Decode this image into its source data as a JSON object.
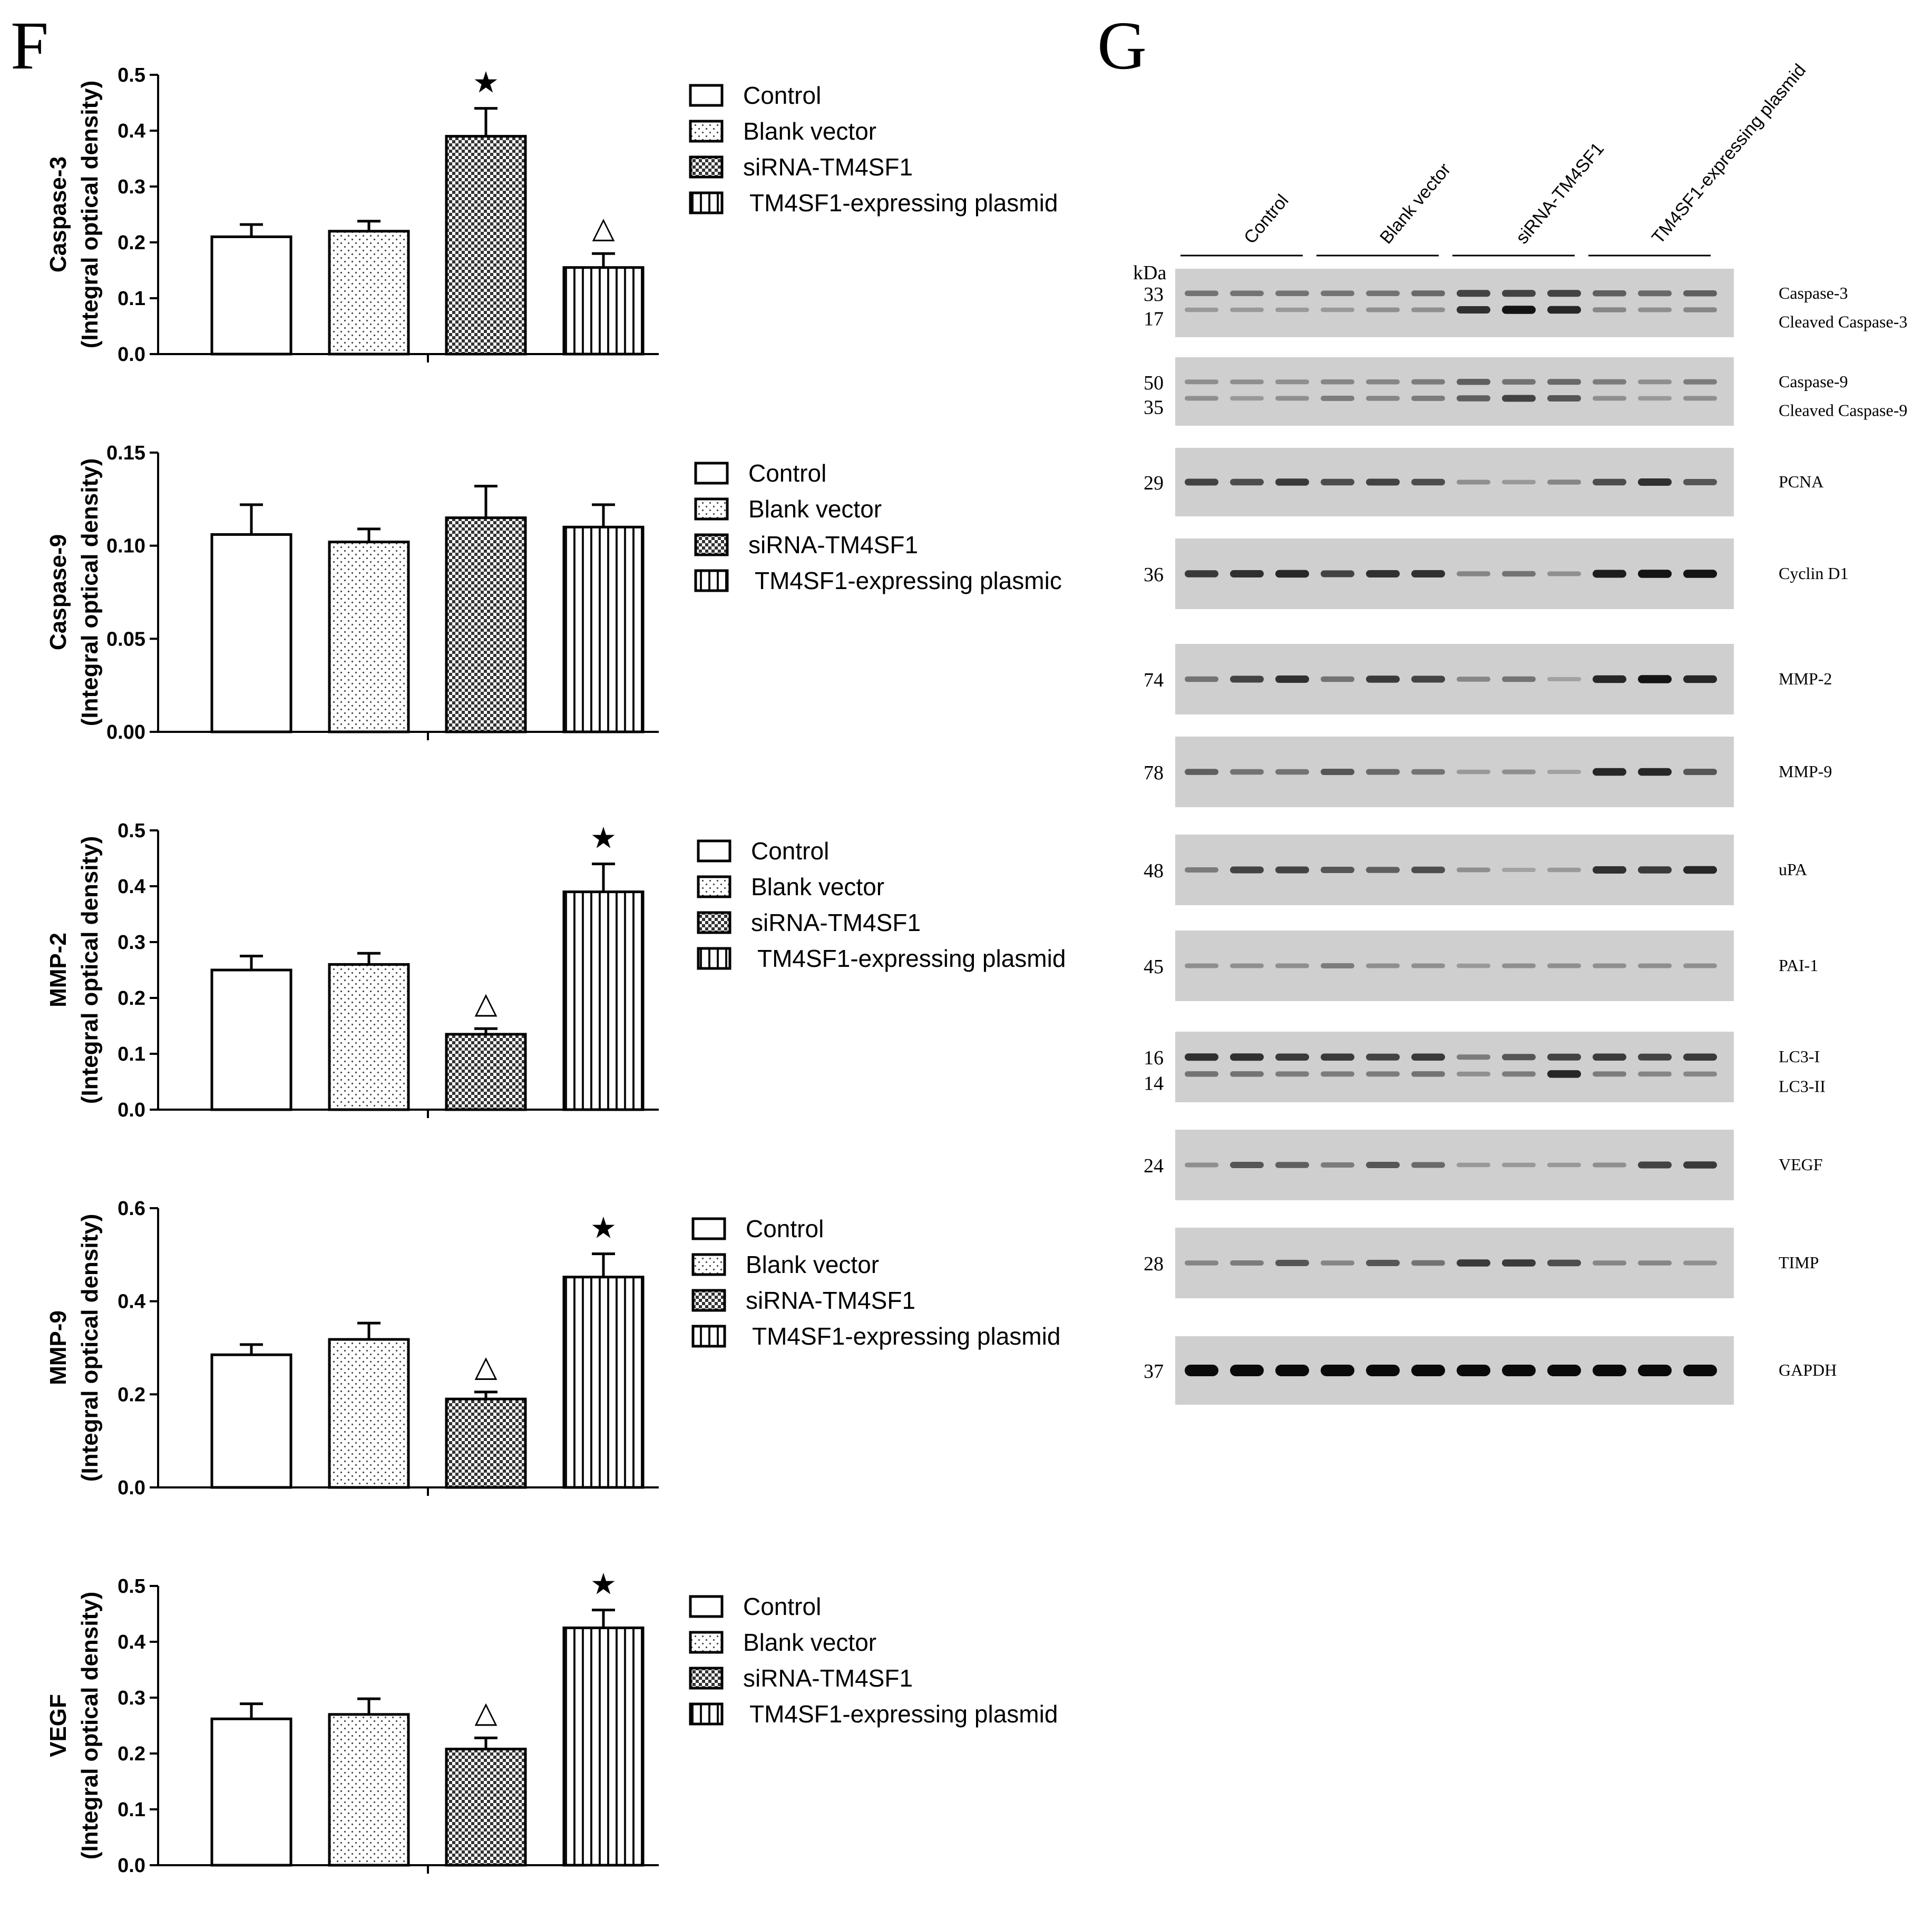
{
  "panels": {
    "F": "F",
    "G": "G"
  },
  "legend": [
    "Control",
    "Blank vector",
    "siRNA-TM4SF1",
    "TM4SF1-expressing plasmid"
  ],
  "legend_variant": "TM4SF1-expressing plasmic",
  "chart_data": [
    {
      "type": "bar",
      "title": "",
      "ylabel": [
        "Caspase-3",
        "(Integral optical density)"
      ],
      "categories": [
        "Control",
        "Blank vector",
        "siRNA-TM4SF1",
        "TM4SF1-expressing plasmid"
      ],
      "values": [
        0.21,
        0.22,
        0.39,
        0.155
      ],
      "errors": [
        0.022,
        0.018,
        0.05,
        0.025
      ],
      "ylim": [
        0,
        0.5
      ],
      "yticks": [
        "0.0",
        "0.1",
        "0.2",
        "0.3",
        "0.4",
        "0.5"
      ],
      "markers": [
        null,
        null,
        "★",
        "△"
      ]
    },
    {
      "type": "bar",
      "title": "",
      "ylabel": [
        "Caspase-9",
        "(Integral optical density)"
      ],
      "categories": [
        "Control",
        "Blank vector",
        "siRNA-TM4SF1",
        "TM4SF1-expressing plasmid"
      ],
      "values": [
        0.106,
        0.102,
        0.115,
        0.11
      ],
      "errors": [
        0.016,
        0.007,
        0.017,
        0.012
      ],
      "ylim": [
        0,
        0.15
      ],
      "yticks": [
        "0.00",
        "0.05",
        "0.10",
        "0.15"
      ],
      "markers": [
        null,
        null,
        null,
        null
      ]
    },
    {
      "type": "bar",
      "title": "",
      "ylabel": [
        "MMP-2",
        "(Integral optical density)"
      ],
      "categories": [
        "Control",
        "Blank vector",
        "siRNA-TM4SF1",
        "TM4SF1-expressing plasmid"
      ],
      "values": [
        0.25,
        0.26,
        0.135,
        0.39
      ],
      "errors": [
        0.025,
        0.02,
        0.01,
        0.05
      ],
      "ylim": [
        0,
        0.5
      ],
      "yticks": [
        "0.0",
        "0.1",
        "0.2",
        "0.3",
        "0.4",
        "0.5"
      ],
      "markers": [
        null,
        null,
        "△",
        "★"
      ]
    },
    {
      "type": "bar",
      "title": "",
      "ylabel": [
        "MMP-9",
        "(Integral optical density)"
      ],
      "categories": [
        "Control",
        "Blank vector",
        "siRNA-TM4SF1",
        "TM4SF1-expressing plasmid"
      ],
      "values": [
        0.285,
        0.318,
        0.19,
        0.452
      ],
      "errors": [
        0.022,
        0.035,
        0.015,
        0.05
      ],
      "ylim": [
        0,
        0.6
      ],
      "yticks": [
        "0.0",
        "0.2",
        "0.4",
        "0.6"
      ],
      "markers": [
        null,
        null,
        "△",
        "★"
      ]
    },
    {
      "type": "bar",
      "title": "",
      "ylabel": [
        "VEGF",
        "(Integral optical density)"
      ],
      "categories": [
        "Control",
        "Blank vector",
        "siRNA-TM4SF1",
        "TM4SF1-expressing plasmid"
      ],
      "values": [
        0.262,
        0.27,
        0.208,
        0.425
      ],
      "errors": [
        0.027,
        0.028,
        0.02,
        0.032
      ],
      "ylim": [
        0,
        0.5
      ],
      "yticks": [
        "0.0",
        "0.1",
        "0.2",
        "0.3",
        "0.4",
        "0.5"
      ],
      "markers": [
        null,
        null,
        "△",
        "★"
      ]
    }
  ],
  "blot": {
    "kda_label": "kDa",
    "groups": [
      "Control",
      "Blank vector",
      "siRNA-TM4SF1",
      "TM4SF1-expressing plasmid"
    ],
    "rows": [
      {
        "kda": [
          "33",
          "17"
        ],
        "proteins": [
          "Caspase-3",
          "Cleaved Caspase-3"
        ],
        "bands": 2,
        "intensity": [
          0.45,
          0.45,
          0.45,
          0.45,
          0.45,
          0.5,
          0.7,
          0.7,
          0.7,
          0.55,
          0.5,
          0.55
        ],
        "intensity2": [
          0.25,
          0.25,
          0.25,
          0.25,
          0.3,
          0.3,
          0.8,
          0.95,
          0.85,
          0.35,
          0.3,
          0.35
        ]
      },
      {
        "kda": [
          "50",
          "35"
        ],
        "proteins": [
          "Caspase-9",
          "Cleaved Caspase-9"
        ],
        "bands": 2,
        "intensity": [
          0.3,
          0.3,
          0.3,
          0.35,
          0.35,
          0.4,
          0.55,
          0.45,
          0.5,
          0.4,
          0.3,
          0.4
        ],
        "intensity2": [
          0.3,
          0.25,
          0.3,
          0.4,
          0.35,
          0.4,
          0.55,
          0.7,
          0.6,
          0.3,
          0.25,
          0.3
        ]
      },
      {
        "kda": [
          "29"
        ],
        "proteins": [
          "PCNA"
        ],
        "bands": 1,
        "intensity": [
          0.7,
          0.65,
          0.75,
          0.65,
          0.7,
          0.65,
          0.3,
          0.25,
          0.35,
          0.65,
          0.8,
          0.6
        ]
      },
      {
        "kda": [
          "36"
        ],
        "proteins": [
          "Cyclin D1"
        ],
        "bands": 1,
        "intensity": [
          0.75,
          0.8,
          0.85,
          0.7,
          0.8,
          0.8,
          0.35,
          0.45,
          0.3,
          0.9,
          0.95,
          0.95
        ]
      },
      {
        "kda": [
          "74"
        ],
        "proteins": [
          "MMP-2"
        ],
        "bands": 1,
        "intensity": [
          0.45,
          0.7,
          0.8,
          0.45,
          0.75,
          0.7,
          0.35,
          0.45,
          0.2,
          0.85,
          0.95,
          0.85
        ]
      },
      {
        "kda": [
          "78"
        ],
        "proteins": [
          "MMP-9"
        ],
        "bands": 1,
        "intensity": [
          0.55,
          0.45,
          0.45,
          0.6,
          0.5,
          0.45,
          0.25,
          0.3,
          0.2,
          0.85,
          0.85,
          0.6
        ]
      },
      {
        "kda": [
          "48"
        ],
        "proteins": [
          "uPA"
        ],
        "bands": 1,
        "intensity": [
          0.4,
          0.7,
          0.7,
          0.6,
          0.55,
          0.65,
          0.3,
          0.2,
          0.25,
          0.8,
          0.75,
          0.85
        ]
      },
      {
        "kda": [
          "45"
        ],
        "proteins": [
          "PAI-1"
        ],
        "bands": 1,
        "intensity": [
          0.3,
          0.3,
          0.3,
          0.4,
          0.3,
          0.3,
          0.25,
          0.3,
          0.3,
          0.3,
          0.3,
          0.3
        ]
      },
      {
        "kda": [
          "16",
          "14"
        ],
        "proteins": [
          "LC3-I",
          "LC3-II"
        ],
        "bands": 2,
        "intensity": [
          0.8,
          0.8,
          0.75,
          0.75,
          0.7,
          0.75,
          0.4,
          0.6,
          0.7,
          0.75,
          0.7,
          0.75
        ],
        "intensity2": [
          0.45,
          0.45,
          0.4,
          0.4,
          0.4,
          0.45,
          0.3,
          0.4,
          0.85,
          0.4,
          0.35,
          0.35
        ]
      },
      {
        "kda": [
          "24"
        ],
        "proteins": [
          "VEGF"
        ],
        "bands": 1,
        "intensity": [
          0.3,
          0.6,
          0.55,
          0.4,
          0.6,
          0.5,
          0.25,
          0.25,
          0.25,
          0.3,
          0.7,
          0.75
        ]
      },
      {
        "kda": [
          "28"
        ],
        "proteins": [
          "TIMP"
        ],
        "bands": 1,
        "intensity": [
          0.35,
          0.4,
          0.6,
          0.35,
          0.6,
          0.45,
          0.75,
          0.75,
          0.65,
          0.35,
          0.35,
          0.3
        ]
      },
      {
        "kda": [
          "37"
        ],
        "proteins": [
          "GAPDH"
        ],
        "bands": 1,
        "intensity": [
          1,
          1,
          1,
          1,
          1,
          1,
          1,
          1,
          1,
          1,
          1,
          1
        ]
      }
    ]
  }
}
